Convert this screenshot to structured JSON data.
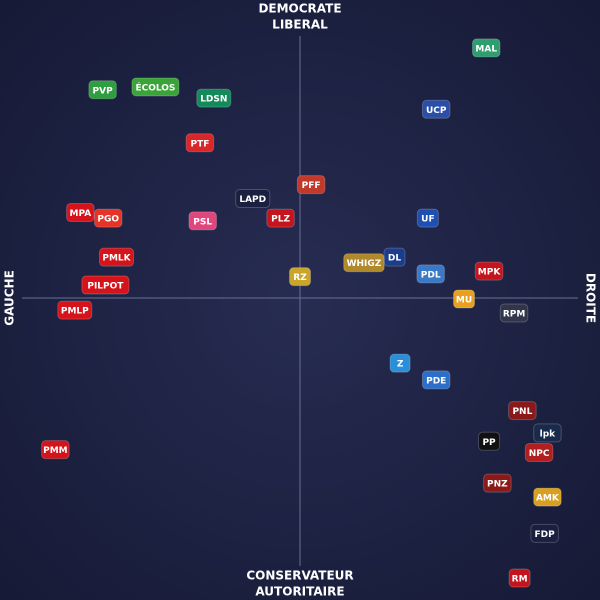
{
  "chart_data": {
    "type": "scatter",
    "top_label": [
      "DEMOCRATE",
      "LIBERAL"
    ],
    "bottom_label": [
      "CONSERVATEUR",
      "AUTORITAIRE"
    ],
    "left_label": "GAUCHE",
    "right_label": "DROITE",
    "xlim": [
      -10,
      10
    ],
    "ylim": [
      -10,
      10
    ],
    "points": [
      {
        "label": "LAPD",
        "x": -1.7,
        "y": 3.6,
        "color": "#1b2040"
      },
      {
        "label": "PVP",
        "x": -7.1,
        "y": 7.5,
        "color": "#2e9e3e"
      },
      {
        "label": "ÉCOLOS",
        "x": -5.2,
        "y": 7.6,
        "color": "#3aa33a"
      },
      {
        "label": "LDSN",
        "x": -3.1,
        "y": 7.2,
        "color": "#138a5a"
      },
      {
        "label": "PTF",
        "x": -3.6,
        "y": 5.6,
        "color": "#d8262a"
      },
      {
        "label": "PSL",
        "x": -3.5,
        "y": 2.8,
        "color": "#e0457b"
      },
      {
        "label": "PLZ",
        "x": -0.7,
        "y": 2.9,
        "color": "#c4141d"
      },
      {
        "label": "PFF",
        "x": 0.4,
        "y": 4.1,
        "color": "#c0392b"
      },
      {
        "label": "RZ",
        "x": 0.0,
        "y": 0.8,
        "color": "#caa52a"
      },
      {
        "label": "PMLP",
        "x": -8.1,
        "y": -0.4,
        "color": "#d4141a"
      },
      {
        "label": "PMLK",
        "x": -6.6,
        "y": 1.5,
        "color": "#d4141a"
      },
      {
        "label": "PGO",
        "x": -6.9,
        "y": 2.9,
        "color": "#e53327"
      },
      {
        "label": "MPA",
        "x": -7.9,
        "y": 3.1,
        "color": "#d4141a"
      },
      {
        "label": "PILPOT",
        "x": -7.0,
        "y": 0.5,
        "color": "#d4141a"
      },
      {
        "label": "PMM",
        "x": -8.8,
        "y": -5.4,
        "color": "#d4141a"
      },
      {
        "label": "MAL",
        "x": 6.7,
        "y": 9.0,
        "color": "#2e9e6e"
      },
      {
        "label": "UCP",
        "x": 4.9,
        "y": 6.8,
        "color": "#2b4fa8"
      },
      {
        "label": "UF",
        "x": 4.6,
        "y": 2.9,
        "color": "#1f4fb0"
      },
      {
        "label": "DL",
        "x": 3.4,
        "y": 1.5,
        "color": "#1c3c8c"
      },
      {
        "label": "WHIGZ",
        "x": 2.3,
        "y": 1.3,
        "color": "#b08a2a"
      },
      {
        "label": "PDL",
        "x": 4.7,
        "y": 0.9,
        "color": "#3a78c8"
      },
      {
        "label": "MPK",
        "x": 6.8,
        "y": 1.0,
        "color": "#c4141d"
      },
      {
        "label": "MU",
        "x": 5.9,
        "y": 0.0,
        "color": "#e8a020"
      },
      {
        "label": "RPM",
        "x": 7.7,
        "y": -0.5,
        "color": "#33364a"
      },
      {
        "label": "Z",
        "x": 3.6,
        "y": -2.3,
        "color": "#2b8ed8"
      },
      {
        "label": "PDE",
        "x": 4.9,
        "y": -2.9,
        "color": "#2b6fc8"
      },
      {
        "label": "PNL",
        "x": 8.0,
        "y": -4.0,
        "color": "#8a1a1a"
      },
      {
        "label": "lpk",
        "x": 8.9,
        "y": -4.8,
        "color": "#1a2a4a"
      },
      {
        "label": "PP",
        "x": 6.8,
        "y": -5.1,
        "color": "#111111"
      },
      {
        "label": "NPC",
        "x": 8.6,
        "y": -5.5,
        "color": "#b02020"
      },
      {
        "label": "PNZ",
        "x": 7.1,
        "y": -6.6,
        "color": "#8a1a1a"
      },
      {
        "label": "AMK",
        "x": 8.9,
        "y": -7.1,
        "color": "#d8a020"
      },
      {
        "label": "FDP",
        "x": 8.8,
        "y": -8.4,
        "color": "#1b2040"
      },
      {
        "label": "RM",
        "x": 7.9,
        "y": -10,
        "color": "#c4141d"
      }
    ]
  }
}
